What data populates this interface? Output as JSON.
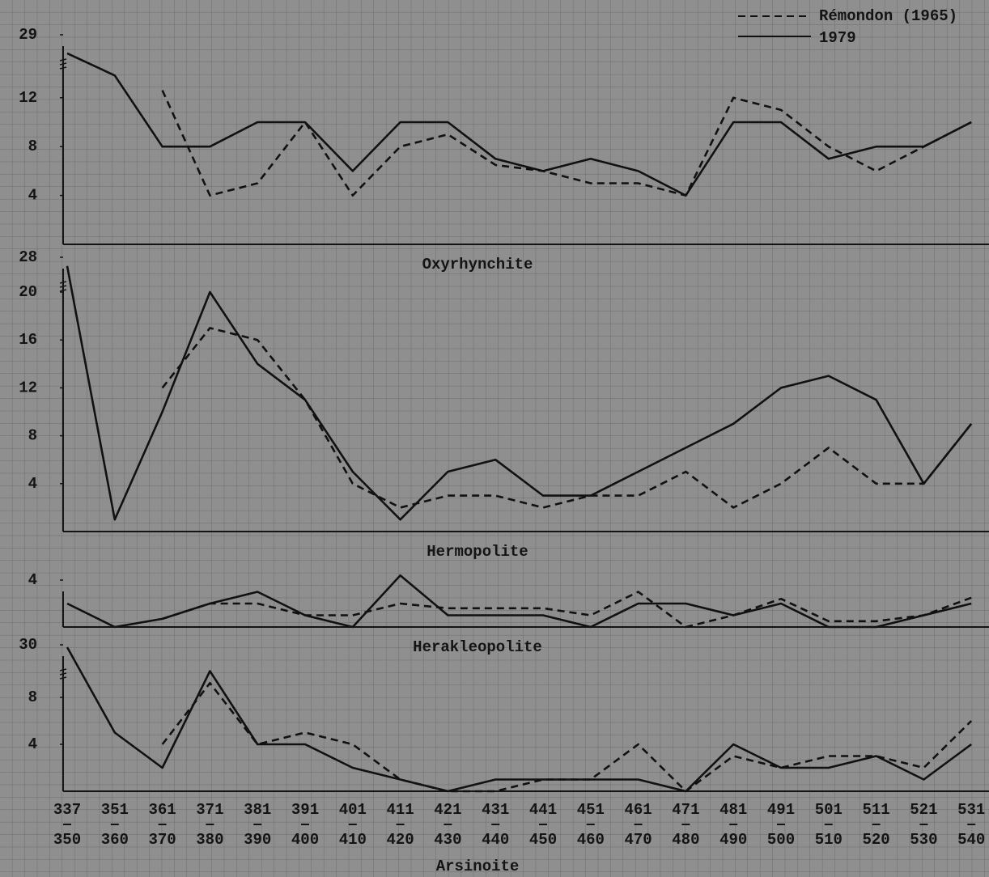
{
  "chart_data": [
    {
      "type": "line",
      "title": "Oxyrhynchite",
      "ylim": [
        0,
        29
      ],
      "yticks": [
        4,
        8,
        12,
        29
      ],
      "axis_break": true,
      "legend": "upper right",
      "series": [
        {
          "name": "Rémondon (1965)",
          "color": "#111111",
          "dashed": true,
          "values": [
            null,
            null,
            14,
            4,
            5,
            10,
            4,
            8,
            9,
            6.5,
            6,
            5,
            5,
            4,
            12,
            11,
            8,
            6,
            8,
            10
          ]
        },
        {
          "name": "1979",
          "color": "#111111",
          "dashed": false,
          "values": [
            24,
            18,
            8,
            8,
            10,
            10,
            6,
            10,
            10,
            7,
            6,
            7,
            6,
            4,
            10,
            10,
            7,
            8,
            8,
            10
          ]
        }
      ]
    },
    {
      "type": "line",
      "title": "Hermopolite",
      "ylim": [
        0,
        28
      ],
      "yticks": [
        4,
        8,
        12,
        16,
        20,
        28
      ],
      "axis_break": true,
      "series": [
        {
          "color": "#111111",
          "dashed": true,
          "values": [
            null,
            null,
            12,
            17,
            16,
            11,
            4,
            2,
            3,
            3,
            2,
            3,
            3,
            5,
            2,
            4,
            7,
            4,
            4,
            9
          ]
        },
        {
          "color": "#111111",
          "dashed": false,
          "values": [
            26,
            1,
            10,
            20,
            14,
            11,
            5,
            1,
            5,
            6,
            3,
            3,
            5,
            7,
            9,
            12,
            13,
            11,
            4,
            9
          ]
        }
      ]
    },
    {
      "type": "line",
      "title": "Herakleopolite",
      "ylim": [
        0,
        4
      ],
      "yticks": [
        4
      ],
      "axis_break": false,
      "series": [
        {
          "color": "#111111",
          "dashed": true,
          "values": [
            null,
            null,
            0.7,
            2,
            2,
            1,
            1,
            2,
            1.6,
            1.6,
            1.6,
            1,
            3,
            0,
            1,
            2.4,
            0.5,
            0.5,
            1,
            2.5
          ]
        },
        {
          "color": "#111111",
          "dashed": false,
          "values": [
            2,
            0,
            0.7,
            2,
            3,
            1,
            0,
            4.4,
            1,
            1,
            1,
            0,
            2,
            2,
            1,
            2,
            0,
            0,
            1,
            2
          ]
        }
      ]
    },
    {
      "type": "line",
      "title": "Arsinoite",
      "ylim": [
        0,
        30
      ],
      "yticks": [
        4,
        8,
        30
      ],
      "axis_break": true,
      "categories": [
        [
          "337",
          "350"
        ],
        [
          "351",
          "360"
        ],
        [
          "361",
          "370"
        ],
        [
          "371",
          "380"
        ],
        [
          "381",
          "390"
        ],
        [
          "391",
          "400"
        ],
        [
          "401",
          "410"
        ],
        [
          "411",
          "420"
        ],
        [
          "421",
          "430"
        ],
        [
          "431",
          "440"
        ],
        [
          "441",
          "450"
        ],
        [
          "451",
          "460"
        ],
        [
          "461",
          "470"
        ],
        [
          "471",
          "480"
        ],
        [
          "481",
          "490"
        ],
        [
          "491",
          "500"
        ],
        [
          "501",
          "510"
        ],
        [
          "511",
          "520"
        ],
        [
          "521",
          "530"
        ],
        [
          "531",
          "540"
        ]
      ],
      "series": [
        {
          "color": "#111111",
          "dashed": true,
          "values": [
            null,
            null,
            4,
            14,
            4,
            5,
            4,
            1,
            0,
            0,
            1,
            1,
            4,
            0,
            3,
            2,
            3,
            3,
            2,
            6
          ]
        },
        {
          "color": "#111111",
          "dashed": false,
          "values": [
            29,
            5,
            2,
            19,
            4,
            4,
            2,
            1,
            0,
            1,
            1,
            1,
            1,
            0,
            4,
            2,
            2,
            3,
            1,
            4
          ]
        }
      ]
    }
  ]
}
